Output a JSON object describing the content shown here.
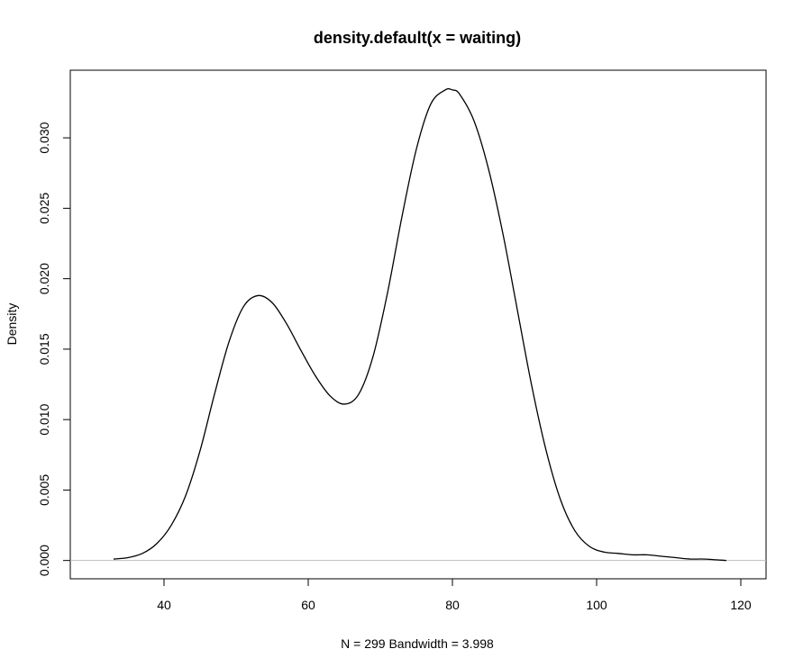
{
  "chart_data": {
    "type": "line",
    "title": "density.default(x = waiting)",
    "xlabel": "N = 299   Bandwidth = 3.998",
    "ylabel": "Density",
    "xlim": [
      27.0,
      123.5
    ],
    "ylim": [
      -0.0013,
      0.0348
    ],
    "x_ticks": [
      40,
      60,
      80,
      100,
      120
    ],
    "x_tick_labels": [
      "40",
      "60",
      "80",
      "100",
      "120"
    ],
    "y_ticks": [
      0.0,
      0.005,
      0.01,
      0.015,
      0.02,
      0.025,
      0.03
    ],
    "y_tick_labels": [
      "0.000",
      "0.005",
      "0.010",
      "0.015",
      "0.020",
      "0.025",
      "0.030"
    ],
    "grid": false,
    "baseline": {
      "y": 0,
      "color": "#bebebe"
    },
    "line_color": "#000000",
    "series": [
      {
        "x": [
          33,
          35,
          37,
          39,
          41,
          43,
          45,
          47,
          49,
          51,
          53,
          55,
          57,
          59,
          61,
          63,
          65,
          67,
          69,
          71,
          73,
          75,
          77,
          79,
          80,
          81,
          83,
          85,
          87,
          89,
          91,
          93,
          95,
          97,
          99,
          101,
          103,
          105,
          107,
          109,
          111,
          113,
          115,
          118
        ],
        "y": [
          0.0001,
          0.0002,
          0.0005,
          0.0012,
          0.0025,
          0.0046,
          0.0078,
          0.0118,
          0.0155,
          0.018,
          0.0188,
          0.0183,
          0.0168,
          0.0149,
          0.0131,
          0.0117,
          0.0111,
          0.0118,
          0.0145,
          0.019,
          0.0244,
          0.0292,
          0.0324,
          0.0334,
          0.0334,
          0.0331,
          0.0312,
          0.0278,
          0.0232,
          0.0178,
          0.0124,
          0.0078,
          0.0043,
          0.0021,
          0.001,
          0.0006,
          0.0005,
          0.0004,
          0.0004,
          0.0003,
          0.0002,
          0.0001,
          0.0001,
          0.0
        ]
      }
    ]
  }
}
